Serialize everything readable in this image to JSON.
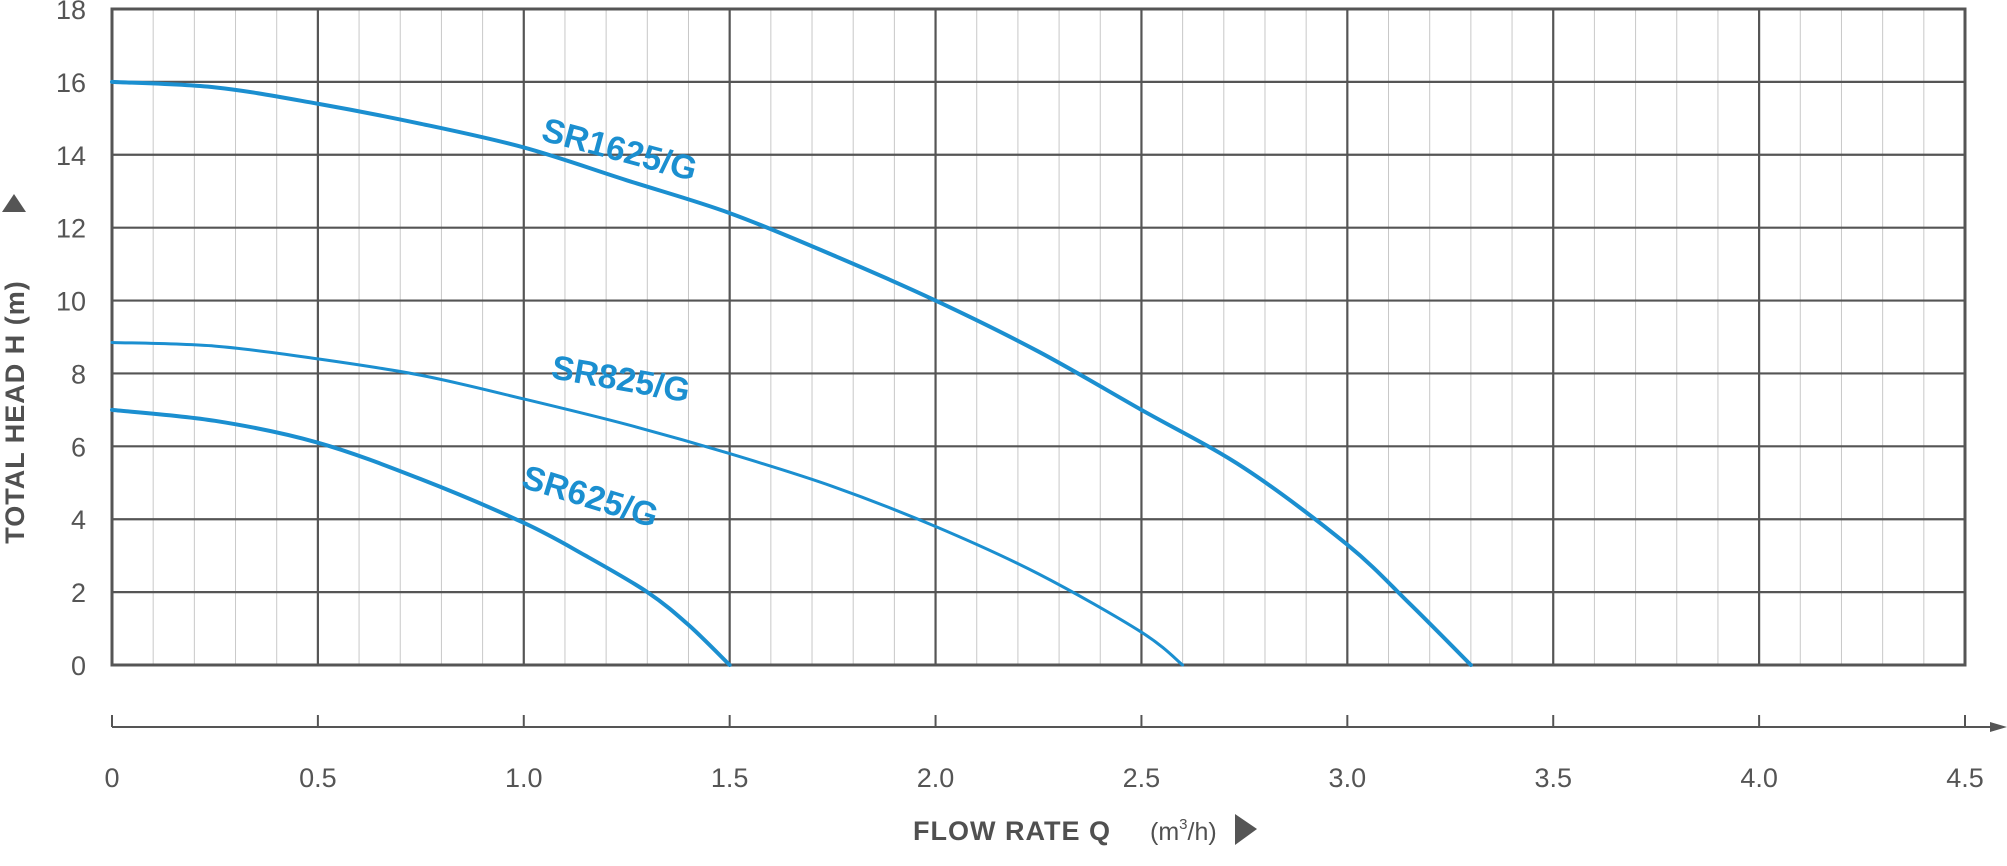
{
  "chart_data": {
    "type": "line",
    "xlabel": "FLOW RATE Q",
    "x_unit": {
      "base": "(m",
      "sup": "3",
      "tail": "/h)"
    },
    "ylabel": "TOTAL HEAD H (m)",
    "xlim": [
      0,
      4.5
    ],
    "ylim": [
      0,
      18
    ],
    "x_ticks": [
      "0",
      "0.5",
      "1.0",
      "1.5",
      "2.0",
      "2.5",
      "3.0",
      "3.5",
      "4.0",
      "4.5"
    ],
    "y_ticks": [
      "0",
      "2",
      "4",
      "6",
      "8",
      "10",
      "12",
      "14",
      "16",
      "18"
    ],
    "grid": true,
    "line_color": "#1b8fd0",
    "series": [
      {
        "name": "SR1625/G",
        "x": [
          0,
          0.25,
          0.5,
          0.75,
          1.0,
          1.25,
          1.5,
          1.75,
          2.0,
          2.25,
          2.5,
          2.75,
          3.0,
          3.15,
          3.3
        ],
        "y": [
          16.0,
          15.85,
          15.4,
          14.85,
          14.2,
          13.3,
          12.4,
          11.25,
          10.0,
          8.6,
          7.0,
          5.4,
          3.3,
          1.7,
          0
        ]
      },
      {
        "name": "SR825/G",
        "x": [
          0,
          0.25,
          0.5,
          0.75,
          1.0,
          1.25,
          1.5,
          1.75,
          2.0,
          2.25,
          2.5,
          2.6
        ],
        "y": [
          8.85,
          8.75,
          8.4,
          7.95,
          7.3,
          6.6,
          5.8,
          4.9,
          3.8,
          2.5,
          0.9,
          0
        ]
      },
      {
        "name": "SR625/G",
        "x": [
          0,
          0.25,
          0.5,
          0.75,
          1.0,
          1.15,
          1.3,
          1.4,
          1.5
        ],
        "y": [
          7.0,
          6.7,
          6.1,
          5.1,
          3.9,
          3.0,
          2.0,
          1.1,
          0
        ]
      }
    ]
  }
}
